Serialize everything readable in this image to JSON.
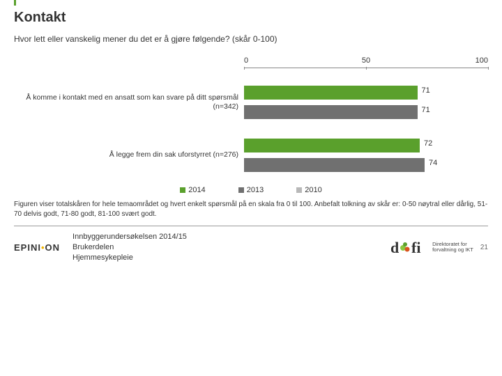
{
  "title": "Kontakt",
  "subtitle": "Hvor lett eller vanskelig mener du det er å gjøre følgende? (skår 0-100)",
  "chart": {
    "type": "bar",
    "xlim": [
      0,
      100
    ],
    "ticks": [
      0,
      50,
      100
    ],
    "series_colors": {
      "2014": "#5aa02c",
      "2013": "#707070",
      "2010": "#b8b8b8"
    },
    "groups": [
      {
        "label": "Å komme i kontakt med en ansatt som kan svare på ditt spørsmål (n=342)",
        "bars": [
          {
            "series": "2014",
            "value": 71
          },
          {
            "series": "2013",
            "value": 71
          }
        ]
      },
      {
        "label": "Å legge frem din sak uforstyrret (n=276)",
        "bars": [
          {
            "series": "2014",
            "value": 72
          },
          {
            "series": "2013",
            "value": 74
          }
        ]
      }
    ],
    "legend": [
      "2014",
      "2013",
      "2010"
    ]
  },
  "caption": "Figuren viser totalskåren for hele temaområdet og hvert enkelt spørsmål på en skala fra 0 til 100. Anbefalt tolkning av skår er: 0-50 nøytral eller dårlig, 51-70 delvis godt, 71-80 godt, 81-100 svært godt.",
  "footer": {
    "brand": "EPINION",
    "survey_line1": "Innbyggerundersøkelsen 2014/15",
    "survey_line2": "Brukerdelen",
    "survey_line3": "Hjemmesykepleie",
    "difi_line1": "Direktoratet for",
    "difi_line2": "forvaltning og IKT",
    "page": "21"
  },
  "colors": {
    "accent": "#5aa02c",
    "text": "#333333",
    "axis": "#888888"
  }
}
